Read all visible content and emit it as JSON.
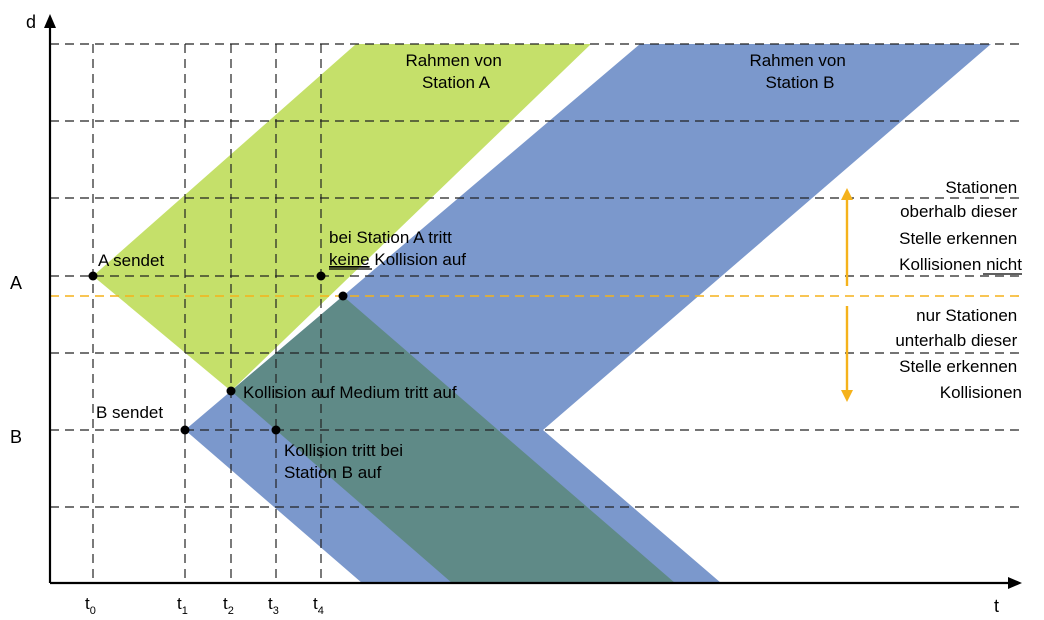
{
  "axes": {
    "y_label": "d",
    "x_label": "t",
    "station_a": "A",
    "station_b": "B"
  },
  "time_ticks": [
    {
      "base": "t",
      "sub": "0"
    },
    {
      "base": "t",
      "sub": "1"
    },
    {
      "base": "t",
      "sub": "2"
    },
    {
      "base": "t",
      "sub": "3"
    },
    {
      "base": "t",
      "sub": "4"
    }
  ],
  "frames": {
    "frame_a": {
      "line1": "Rahmen von",
      "line2": "Station A",
      "color": "#c5e06a"
    },
    "frame_b": {
      "line1": "Rahmen von",
      "line2": "Station B",
      "color": "#7b98cc"
    },
    "overlap_color": "#5f8a87"
  },
  "annotations": {
    "a_sends": "A sendet",
    "b_sends": "B sendet",
    "no_collision_line1": "bei Station A tritt",
    "no_collision_line2a": "keine",
    "no_collision_line2b": " Kollision auf",
    "collision_medium": "Kollision auf Medium tritt auf",
    "collision_b_line1": "Kollision tritt bei",
    "collision_b_line2": "Station B auf"
  },
  "side_notes": {
    "above": {
      "line1": "Stationen",
      "line2": "oberhalb dieser",
      "line3": "Stelle erkennen",
      "line4a": "Kollisionen ",
      "line4b": "nicht"
    },
    "below": {
      "line1": "nur Stationen",
      "line2": "unterhalb dieser",
      "line3": "Stelle erkennen",
      "line4": "Kollisionen"
    },
    "arrow_color": "#f5b21b"
  }
}
